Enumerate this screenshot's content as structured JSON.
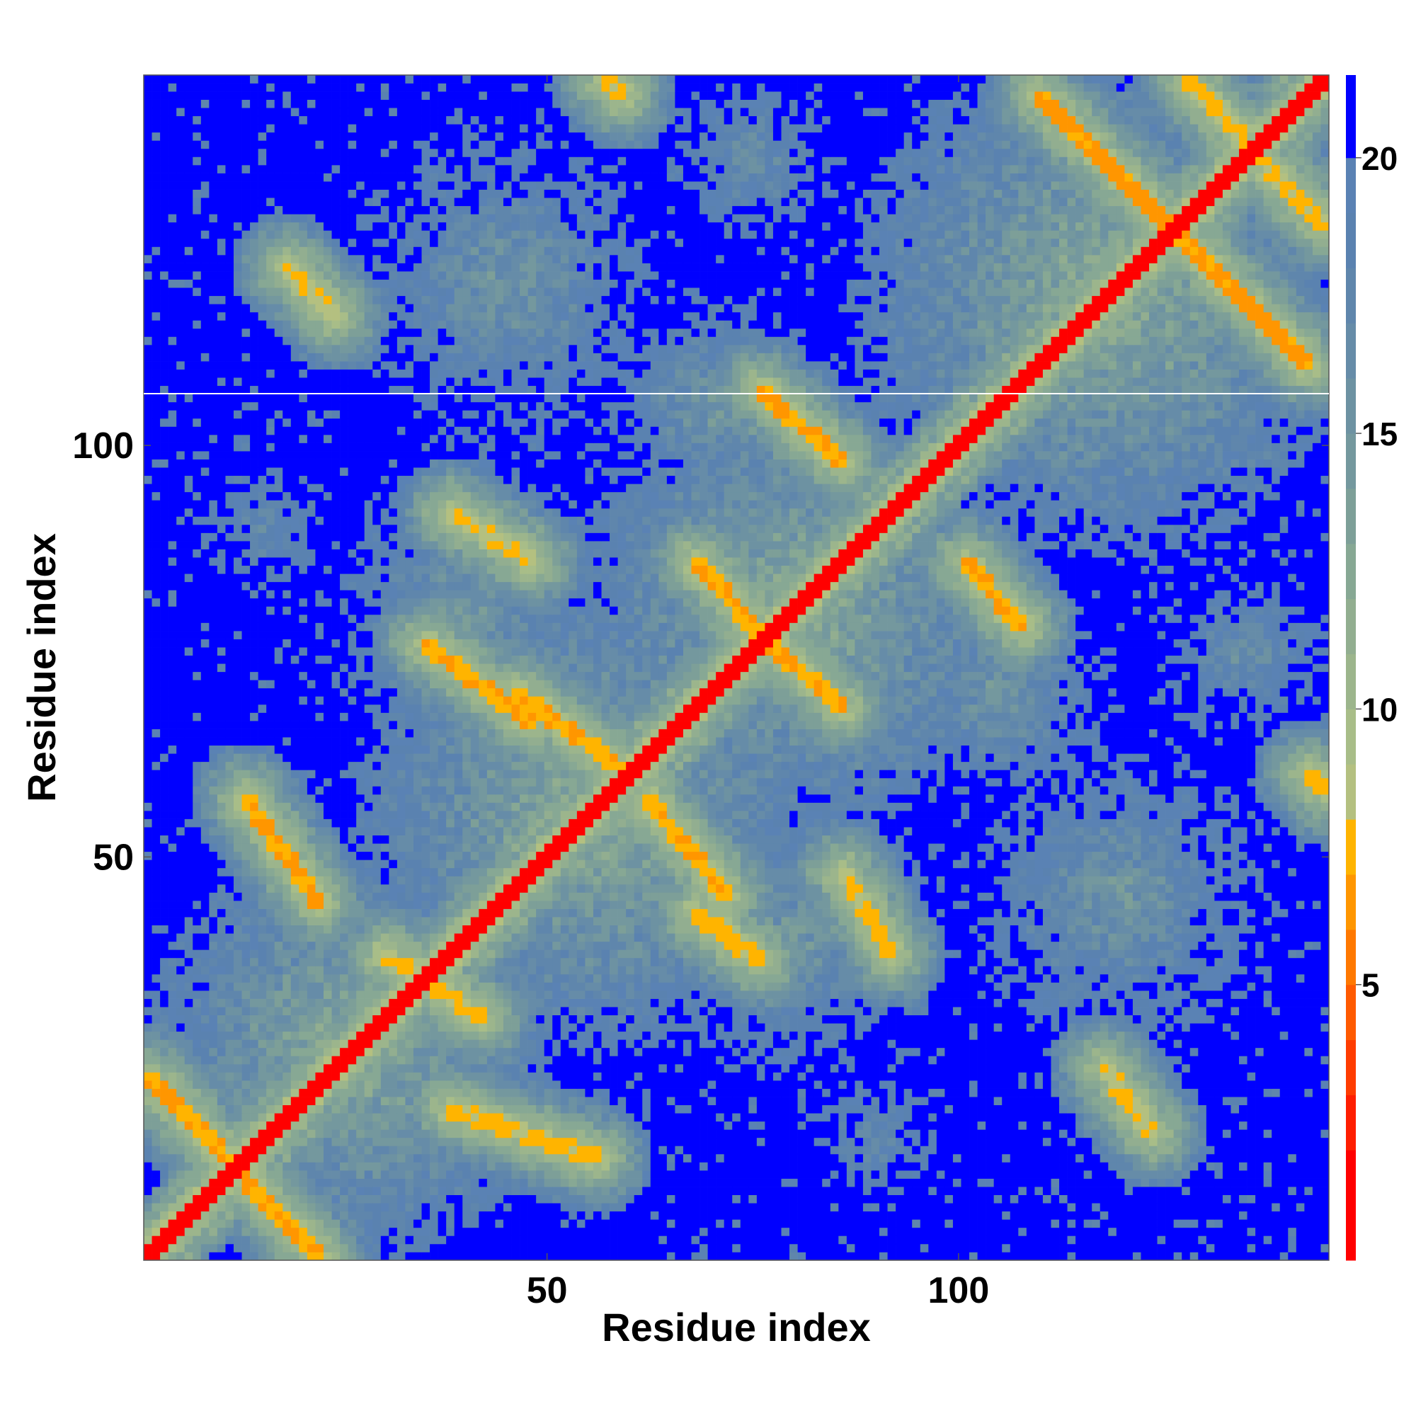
{
  "chart_data": {
    "type": "heatmap",
    "xlabel": "Residue index",
    "ylabel": "Residue index",
    "n_residues": 145,
    "x_range": [
      1,
      145
    ],
    "y_range": [
      1,
      145
    ],
    "x_ticks": [
      {
        "value": 50,
        "label": "50"
      },
      {
        "value": 100,
        "label": "100"
      }
    ],
    "y_ticks": [
      {
        "value": 50,
        "label": "50"
      },
      {
        "value": 100,
        "label": "100"
      }
    ],
    "colorbar": {
      "range": [
        0,
        21.5
      ],
      "ticks": [
        {
          "value": 5,
          "label": "5"
        },
        {
          "value": 10,
          "label": "10"
        },
        {
          "value": 15,
          "label": "15"
        },
        {
          "value": 20,
          "label": "20"
        }
      ],
      "colors": [
        {
          "max": 2,
          "color": "#ff0000"
        },
        {
          "max": 3,
          "color": "#ff1e00"
        },
        {
          "max": 4,
          "color": "#ff3c00"
        },
        {
          "max": 5,
          "color": "#ff5a00"
        },
        {
          "max": 6,
          "color": "#ff7800"
        },
        {
          "max": 7,
          "color": "#ff9600"
        },
        {
          "max": 8,
          "color": "#ffb400"
        },
        {
          "max": 9,
          "color": "#b4c080"
        },
        {
          "max": 10,
          "color": "#a8bd88"
        },
        {
          "max": 11,
          "color": "#9cb58c"
        },
        {
          "max": 12,
          "color": "#92ae90"
        },
        {
          "max": 13,
          "color": "#87a894"
        },
        {
          "max": 14,
          "color": "#7d9f98"
        },
        {
          "max": 15,
          "color": "#74989e"
        },
        {
          "max": 16,
          "color": "#6d92a2"
        },
        {
          "max": 17,
          "color": "#668ca8"
        },
        {
          "max": 18,
          "color": "#5f86ac"
        },
        {
          "max": 19,
          "color": "#5a82b0"
        },
        {
          "max": 20,
          "color": "#5a82b4"
        },
        {
          "max": 99,
          "color": "#0000ff"
        }
      ]
    },
    "diagonal_distance": 1,
    "contact_bands": [
      {
        "start": [
          1,
          23
        ],
        "end": [
          22,
          1
        ],
        "distance": 6.5
      },
      {
        "start": [
          13,
          57
        ],
        "end": [
          22,
          44
        ],
        "distance": 6.5
      },
      {
        "start": [
          30,
          38
        ],
        "end": [
          42,
          30
        ],
        "distance": 7.0
      },
      {
        "start": [
          38,
          19
        ],
        "end": [
          56,
          13
        ],
        "distance": 7.0
      },
      {
        "start": [
          35,
          76
        ],
        "end": [
          48,
          66
        ],
        "distance": 6.5
      },
      {
        "start": [
          46,
          70
        ],
        "end": [
          60,
          60
        ],
        "distance": 6.5
      },
      {
        "start": [
          62,
          57
        ],
        "end": [
          72,
          45
        ],
        "distance": 6.5
      },
      {
        "start": [
          68,
          43
        ],
        "end": [
          76,
          37
        ],
        "distance": 7.0
      },
      {
        "start": [
          68,
          86
        ],
        "end": [
          77,
          76
        ],
        "distance": 6.5
      },
      {
        "start": [
          76,
          77
        ],
        "end": [
          86,
          68
        ],
        "distance": 6.5
      },
      {
        "start": [
          76,
          107
        ],
        "end": [
          86,
          98
        ],
        "distance": 6.5
      },
      {
        "start": [
          101,
          86
        ],
        "end": [
          108,
          78
        ],
        "distance": 6.5
      },
      {
        "start": [
          38,
          92
        ],
        "end": [
          48,
          86
        ],
        "distance": 7.5
      },
      {
        "start": [
          86,
          48
        ],
        "end": [
          92,
          38
        ],
        "distance": 7.5
      },
      {
        "start": [
          110,
          143
        ],
        "end": [
          128,
          125
        ],
        "distance": 6.0
      },
      {
        "start": [
          125,
          128
        ],
        "end": [
          143,
          110
        ],
        "distance": 6.0
      },
      {
        "start": [
          128,
          145
        ],
        "end": [
          145,
          127
        ],
        "distance": 7.0
      },
      {
        "start": [
          18,
          122
        ],
        "end": [
          24,
          116
        ],
        "distance": 7.5
      },
      {
        "start": [
          118,
          24
        ],
        "end": [
          124,
          16
        ],
        "distance": 7.5
      },
      {
        "start": [
          57,
          145
        ],
        "end": [
          59,
          143
        ],
        "distance": 7.0
      },
      {
        "start": [
          143,
          60
        ],
        "end": [
          145,
          58
        ],
        "distance": 7.0
      }
    ],
    "near_regions": [
      {
        "center": [
          26,
          26
        ],
        "radius": 26,
        "distance": 11
      },
      {
        "center": [
          55,
          55
        ],
        "radius": 30,
        "distance": 11
      },
      {
        "center": [
          80,
          80
        ],
        "radius": 28,
        "distance": 11
      },
      {
        "center": [
          118,
          118
        ],
        "radius": 32,
        "distance": 11
      },
      {
        "center": [
          45,
          120
        ],
        "radius": 24,
        "distance": 14
      },
      {
        "center": [
          120,
          45
        ],
        "radius": 24,
        "distance": 14
      },
      {
        "center": [
          80,
          40
        ],
        "radius": 22,
        "distance": 14
      },
      {
        "center": [
          40,
          80
        ],
        "radius": 22,
        "distance": 14
      },
      {
        "center": [
          105,
          70
        ],
        "radius": 18,
        "distance": 14
      },
      {
        "center": [
          70,
          105
        ],
        "radius": 18,
        "distance": 14
      },
      {
        "center": [
          135,
          75
        ],
        "radius": 15,
        "distance": 15
      },
      {
        "center": [
          75,
          135
        ],
        "radius": 15,
        "distance": 15
      },
      {
        "center": [
          15,
          90
        ],
        "radius": 14,
        "distance": 16
      },
      {
        "center": [
          90,
          15
        ],
        "radius": 14,
        "distance": 16
      }
    ]
  }
}
